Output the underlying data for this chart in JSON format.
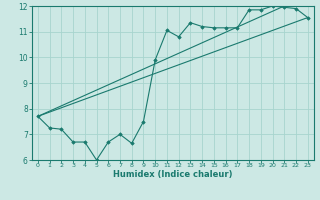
{
  "title": "",
  "xlabel": "Humidex (Indice chaleur)",
  "bg_color": "#cce8e4",
  "line_color": "#1a7a6e",
  "grid_color": "#a8d4ce",
  "xlim": [
    -0.5,
    23.5
  ],
  "ylim": [
    6,
    12
  ],
  "xticks": [
    0,
    1,
    2,
    3,
    4,
    5,
    6,
    7,
    8,
    9,
    10,
    11,
    12,
    13,
    14,
    15,
    16,
    17,
    18,
    19,
    20,
    21,
    22,
    23
  ],
  "yticks": [
    6,
    7,
    8,
    9,
    10,
    11,
    12
  ],
  "main_x": [
    0,
    1,
    2,
    3,
    4,
    5,
    6,
    7,
    8,
    9,
    10,
    11,
    12,
    13,
    14,
    15,
    16,
    17,
    18,
    19,
    20,
    21,
    22,
    23
  ],
  "main_y": [
    7.7,
    7.25,
    7.2,
    6.7,
    6.7,
    6.0,
    6.7,
    7.0,
    6.65,
    7.5,
    9.9,
    11.05,
    10.8,
    11.35,
    11.2,
    11.15,
    11.15,
    11.15,
    11.85,
    11.85,
    12.0,
    11.95,
    11.9,
    11.55
  ],
  "line1_x": [
    0,
    23
  ],
  "line1_y": [
    7.7,
    11.55
  ],
  "line2_x": [
    0,
    21
  ],
  "line2_y": [
    7.7,
    12.0
  ]
}
